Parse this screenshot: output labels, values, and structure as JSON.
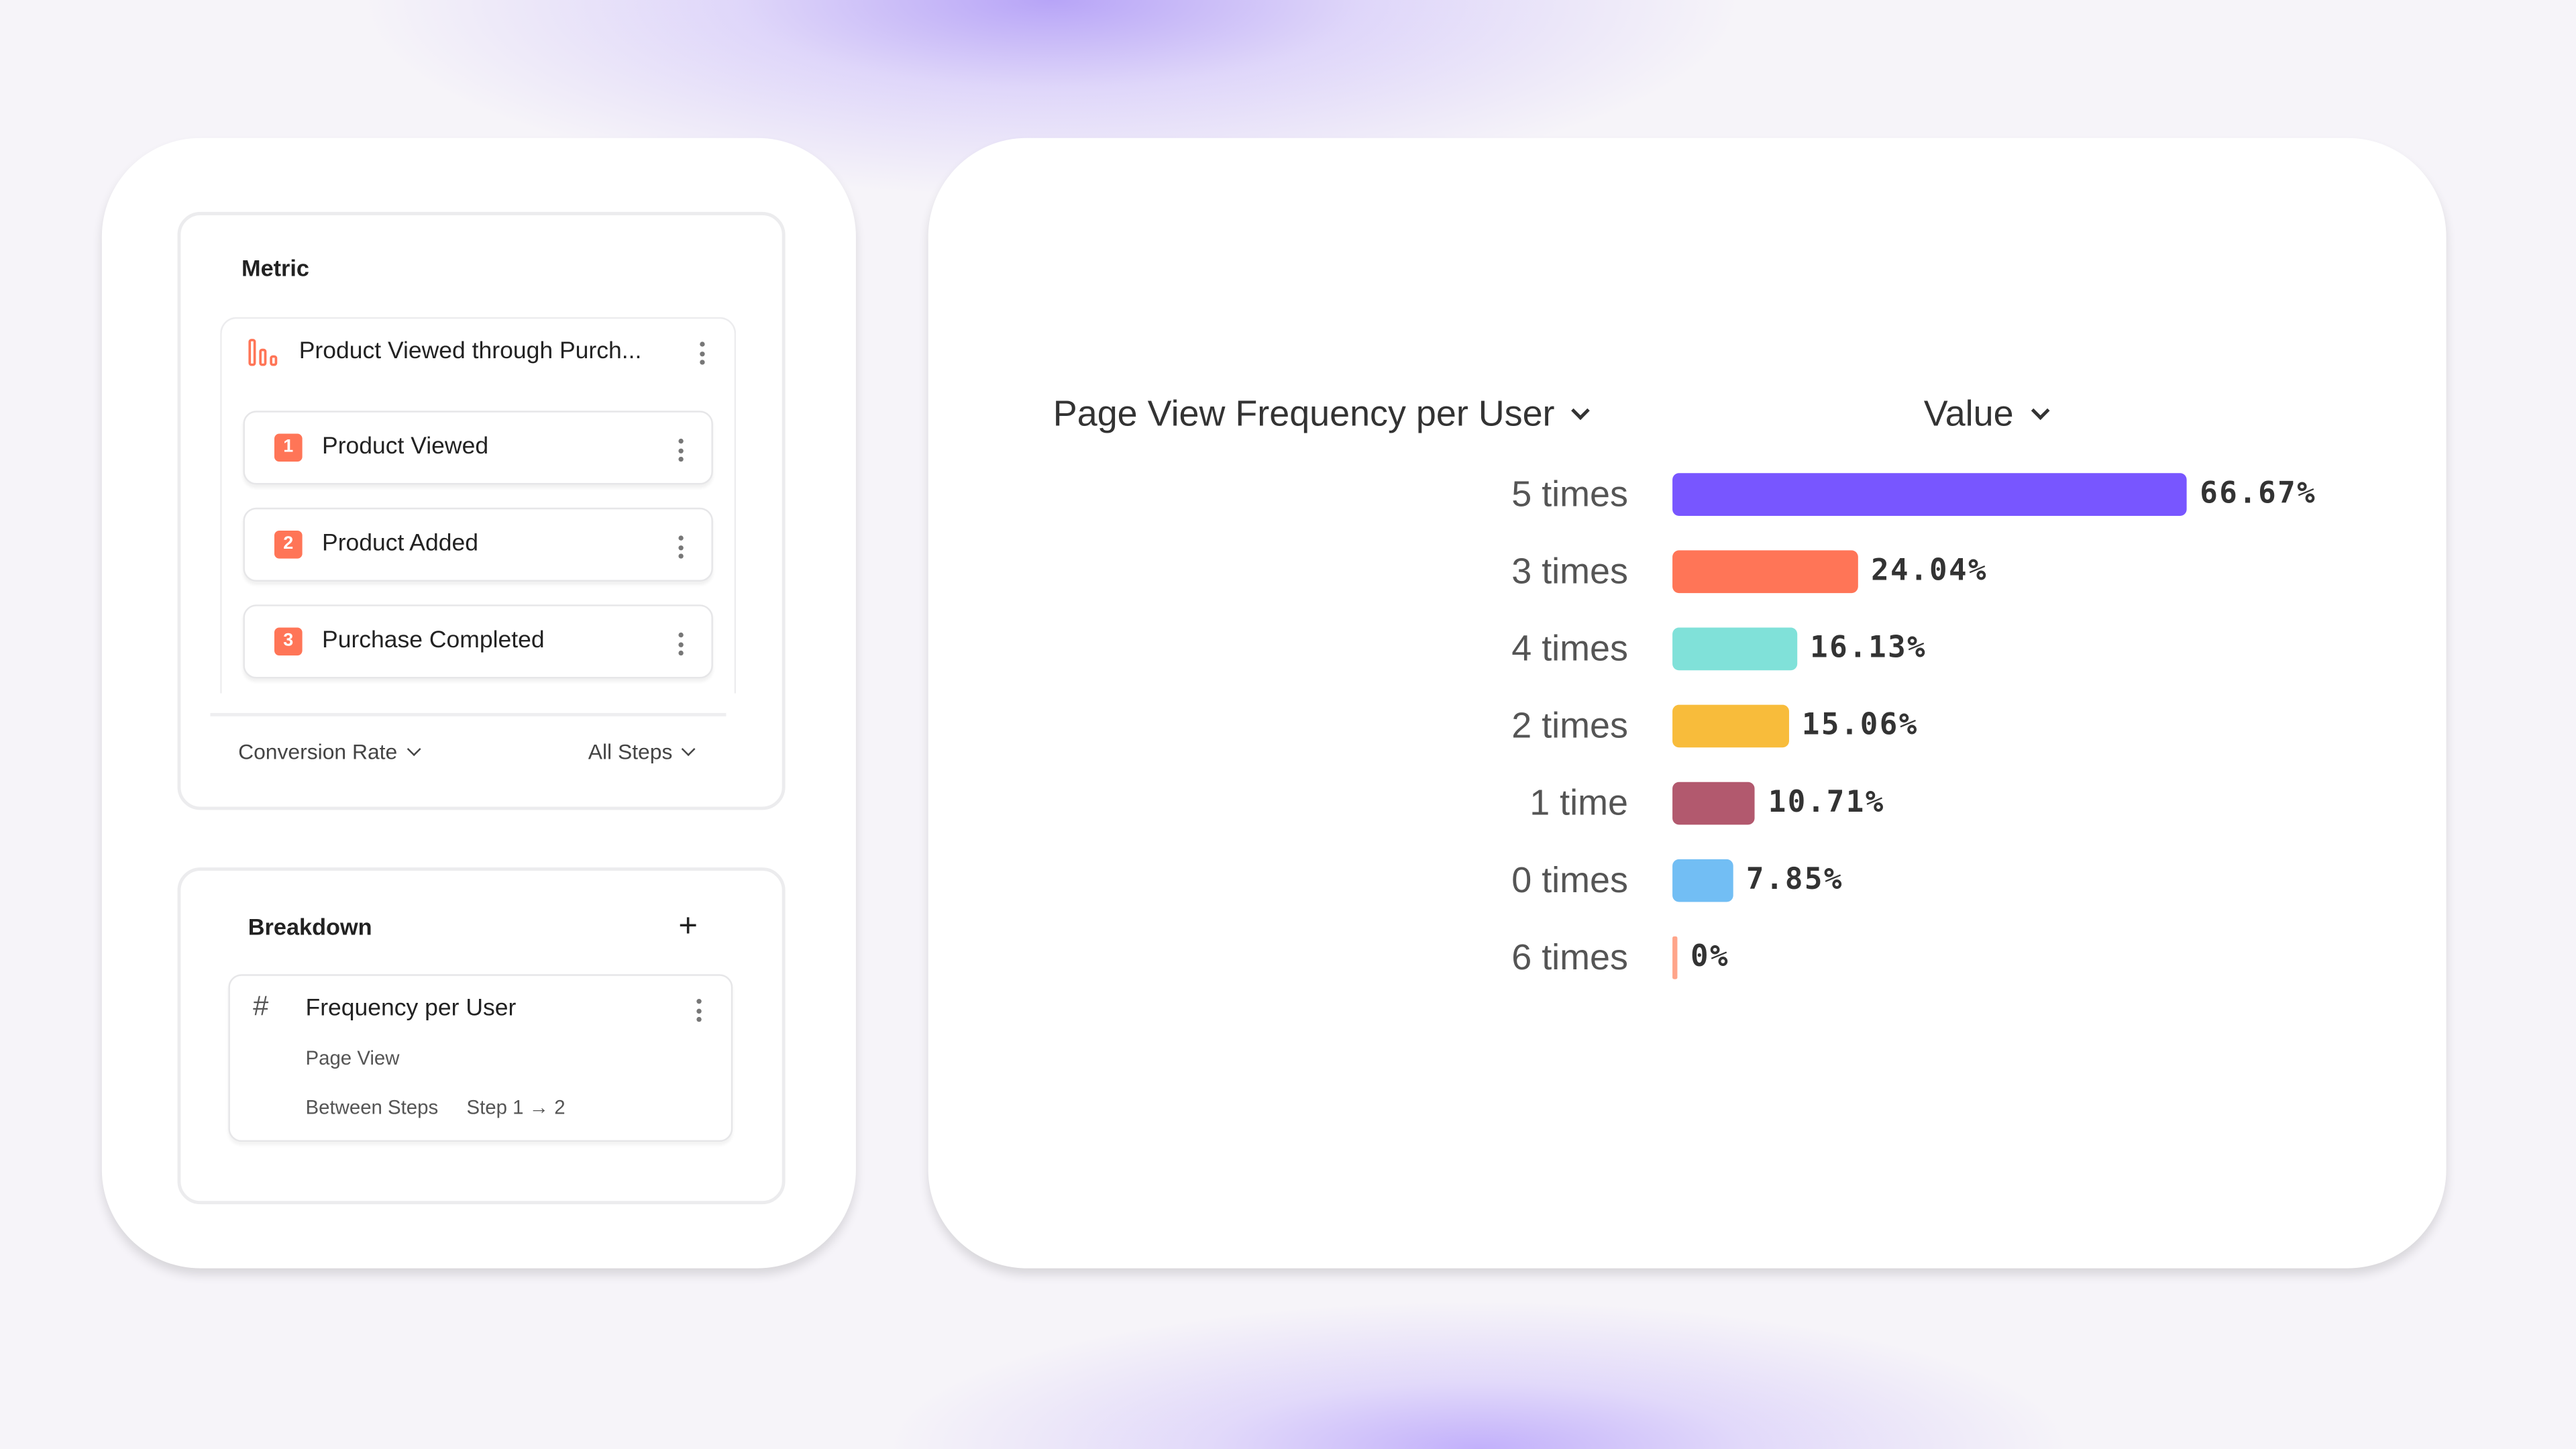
{
  "metric": {
    "title": "Metric",
    "funnel_name": "Product Viewed through Purch...",
    "steps": [
      {
        "num": "1",
        "label": "Product Viewed"
      },
      {
        "num": "2",
        "label": "Product Added"
      },
      {
        "num": "3",
        "label": "Purchase Completed"
      }
    ],
    "conversion_select": "Conversion Rate",
    "steps_select": "All Steps"
  },
  "breakdown": {
    "title": "Breakdown",
    "property": "Frequency per User",
    "event": "Page View",
    "scope_label": "Between Steps",
    "scope_value": "Step 1 → 2"
  },
  "chart_data": {
    "type": "bar",
    "orientation": "horizontal",
    "category_header": "Page View Frequency per User",
    "value_header": "Value",
    "categories": [
      "5 times",
      "3 times",
      "4 times",
      "2 times",
      "1 time",
      "0 times",
      "6 times"
    ],
    "values": [
      66.67,
      24.04,
      16.13,
      15.06,
      10.71,
      7.85,
      0
    ],
    "labels": [
      "66.67%",
      "24.04%",
      "16.13%",
      "15.06%",
      "10.71%",
      "7.85%",
      "0%"
    ],
    "colors": [
      "#7856FF",
      "#FF7557",
      "#80E1D9",
      "#F8BC3B",
      "#B2596E",
      "#72BEF4",
      "#FFA58A"
    ],
    "xlim": [
      0,
      100
    ]
  }
}
